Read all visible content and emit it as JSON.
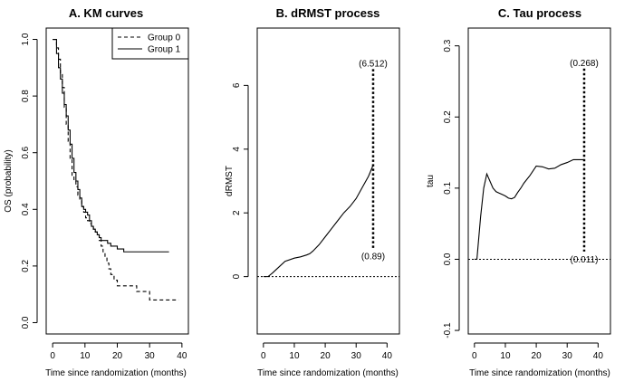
{
  "chart_data": [
    {
      "type": "line",
      "title": "A. KM curves",
      "xlabel": "Time since randomization (months)",
      "ylabel": "OS (probability)",
      "xlim": [
        -2,
        42
      ],
      "ylim": [
        -0.04,
        1.04
      ],
      "xticks": [
        0,
        10,
        20,
        30,
        40
      ],
      "xtick_labels": [
        "0",
        "10",
        "20",
        "30",
        "40"
      ],
      "yticks": [
        0.0,
        0.2,
        0.4,
        0.6,
        0.8,
        1.0
      ],
      "ytick_labels": [
        "0.0",
        "0.2",
        "0.4",
        "0.6",
        "0.8",
        "1.0"
      ],
      "legend": {
        "position": "top-right",
        "entries": [
          {
            "label": "Group 0",
            "style": "dashed"
          },
          {
            "label": "Group 1",
            "style": "solid"
          }
        ]
      },
      "series": [
        {
          "name": "Group 0",
          "style": "dashed",
          "step": true,
          "x": [
            0,
            0.7,
            1.2,
            1.8,
            2.4,
            3.0,
            3.6,
            4.2,
            4.8,
            5.4,
            6.0,
            6.6,
            7.2,
            7.8,
            8.4,
            9.0,
            9.6,
            10.2,
            10.8,
            11.4,
            12.0,
            12.6,
            13.2,
            13.8,
            14.4,
            15.0,
            15.6,
            16.2,
            16.8,
            17.4,
            18.0,
            19.0,
            20.0,
            22.0,
            26.0,
            28.0,
            30.0,
            33.0,
            36.0,
            39.0
          ],
          "y": [
            1.0,
            1.0,
            0.97,
            0.93,
            0.88,
            0.83,
            0.76,
            0.7,
            0.64,
            0.58,
            0.52,
            0.5,
            0.48,
            0.45,
            0.43,
            0.41,
            0.39,
            0.37,
            0.36,
            0.35,
            0.34,
            0.33,
            0.32,
            0.31,
            0.29,
            0.27,
            0.25,
            0.23,
            0.21,
            0.19,
            0.17,
            0.15,
            0.13,
            0.13,
            0.11,
            0.11,
            0.08,
            0.08,
            0.08,
            0.08
          ]
        },
        {
          "name": "Group 1",
          "style": "solid",
          "step": true,
          "x": [
            0,
            0.7,
            1.2,
            1.8,
            2.4,
            3.0,
            3.6,
            4.2,
            4.8,
            5.4,
            6.0,
            6.6,
            7.2,
            7.8,
            8.4,
            9.0,
            9.6,
            10.2,
            10.8,
            11.4,
            12.0,
            12.6,
            13.2,
            13.8,
            14.4,
            15.0,
            16.0,
            17.0,
            18.0,
            19.0,
            20.0,
            22.0,
            26.0,
            30.0,
            33.0,
            36.0
          ],
          "y": [
            1.0,
            1.0,
            0.95,
            0.9,
            0.86,
            0.81,
            0.77,
            0.73,
            0.68,
            0.63,
            0.58,
            0.53,
            0.5,
            0.47,
            0.44,
            0.41,
            0.4,
            0.39,
            0.38,
            0.36,
            0.34,
            0.33,
            0.32,
            0.31,
            0.3,
            0.29,
            0.29,
            0.28,
            0.27,
            0.27,
            0.26,
            0.25,
            0.25,
            0.25,
            0.25,
            0.25
          ]
        }
      ]
    },
    {
      "type": "line",
      "title": "B. dRMST process",
      "xlabel": "Time since randomization (months)",
      "ylabel": "dRMST",
      "xlim": [
        -2,
        44
      ],
      "ylim": [
        -1.8,
        7.8
      ],
      "xticks": [
        0,
        10,
        20,
        30,
        40
      ],
      "xtick_labels": [
        "0",
        "10",
        "20",
        "30",
        "40"
      ],
      "yticks": [
        0,
        2,
        4,
        6
      ],
      "ytick_labels": [
        "0",
        "2",
        "4",
        "6"
      ],
      "reference_line": {
        "axis": "y",
        "value": 0,
        "style": "dotted"
      },
      "interval": {
        "x": 35.5,
        "lower": 0.89,
        "upper": 6.512,
        "lower_label": "(0.89)",
        "upper_label": "(6.512)",
        "style": "dotted"
      },
      "series": [
        {
          "style": "solid",
          "x": [
            0,
            1.5,
            3,
            5,
            7,
            10,
            12,
            14,
            15,
            16,
            18,
            20,
            22,
            24,
            26,
            28,
            30,
            32,
            34,
            35.5
          ],
          "y": [
            0,
            0.0,
            0.12,
            0.3,
            0.48,
            0.58,
            0.62,
            0.68,
            0.72,
            0.8,
            1.0,
            1.25,
            1.5,
            1.75,
            2.0,
            2.2,
            2.45,
            2.8,
            3.15,
            3.5
          ]
        }
      ]
    },
    {
      "type": "line",
      "title": "C. Tau process",
      "xlabel": "Time since randomization (months)",
      "ylabel": "tau",
      "xlim": [
        -2,
        44
      ],
      "ylim": [
        -0.105,
        0.325
      ],
      "xticks": [
        0,
        10,
        20,
        30,
        40
      ],
      "xtick_labels": [
        "0",
        "10",
        "20",
        "30",
        "40"
      ],
      "yticks": [
        -0.1,
        0.0,
        0.1,
        0.2,
        0.3
      ],
      "ytick_labels": [
        "-0.1",
        "0.0",
        "0.1",
        "0.2",
        "0.3"
      ],
      "reference_line": {
        "axis": "y",
        "value": 0.0,
        "style": "dotted"
      },
      "interval": {
        "x": 35.5,
        "lower": 0.011,
        "upper": 0.268,
        "lower_label": "(0.011)",
        "upper_label": "(0.268)",
        "style": "dotted"
      },
      "series": [
        {
          "style": "solid",
          "x": [
            0,
            0.8,
            2,
            3,
            4,
            5,
            6,
            7,
            8,
            9,
            10,
            11,
            12,
            13,
            14,
            15,
            16,
            18,
            20,
            22,
            24,
            26,
            28,
            30,
            32,
            34,
            35.5
          ],
          "y": [
            0.0,
            0.0,
            0.06,
            0.1,
            0.12,
            0.11,
            0.1,
            0.095,
            0.093,
            0.091,
            0.089,
            0.086,
            0.085,
            0.087,
            0.094,
            0.1,
            0.107,
            0.118,
            0.131,
            0.13,
            0.127,
            0.128,
            0.133,
            0.136,
            0.14,
            0.14,
            0.14
          ]
        }
      ]
    }
  ]
}
